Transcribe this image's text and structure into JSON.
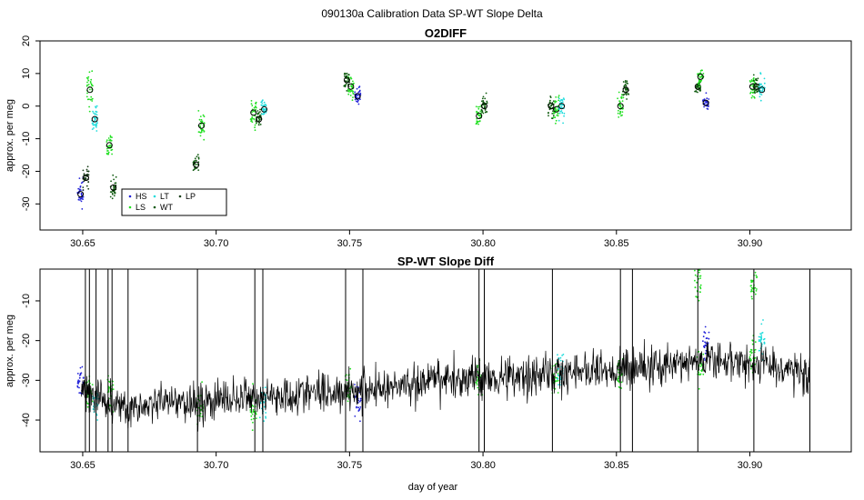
{
  "page_title": "090130a   Calibration Data SP-WT Slope Delta",
  "colors": {
    "HS": "#2121d8",
    "LS": "#22e022",
    "LT": "#1fdcdc",
    "WT": "#0f5a0f",
    "LP": "#1a3f1a",
    "trace": "#000000"
  },
  "chart_data": [
    {
      "type": "scatter",
      "title": "O2DIFF",
      "xlabel": "",
      "ylabel": "approx. per meg",
      "xlim": [
        30.634,
        30.938
      ],
      "ylim": [
        -38,
        20
      ],
      "x_ticks": [
        30.65,
        30.7,
        30.75,
        30.8,
        30.85,
        30.9
      ],
      "x_tick_labels": [
        "30.65",
        "30.70",
        "30.75",
        "30.80",
        "30.85",
        "30.90"
      ],
      "y_ticks": [
        -30,
        -20,
        -10,
        0,
        10,
        20
      ],
      "y_tick_labels": [
        "-30",
        "-20",
        "-10",
        "0",
        "10",
        "20"
      ],
      "legend": {
        "position": "bottom-left",
        "entries": [
          {
            "key": "HS",
            "label": "HS"
          },
          {
            "key": "LS",
            "label": "LS"
          },
          {
            "key": "LT",
            "label": "LT"
          },
          {
            "key": "WT",
            "label": "WT"
          },
          {
            "key": "LP",
            "label": "LP"
          }
        ]
      },
      "groups": [
        {
          "tank": "HS",
          "x": 30.6492,
          "mean": -27,
          "sd": 3.5
        },
        {
          "tank": "LP",
          "x": 30.6512,
          "mean": -22,
          "sd": 2.5
        },
        {
          "tank": "LS",
          "x": 30.6527,
          "mean": 5,
          "sd": 4.5
        },
        {
          "tank": "LT",
          "x": 30.6545,
          "mean": -4,
          "sd": 3.5
        },
        {
          "tank": "LS",
          "x": 30.66,
          "mean": -12,
          "sd": 2.5
        },
        {
          "tank": "WT",
          "x": 30.6615,
          "mean": -25,
          "sd": 2.5
        },
        {
          "tank": "WT",
          "x": 30.6925,
          "mean": -18,
          "sd": 2.5
        },
        {
          "tank": "LS",
          "x": 30.6945,
          "mean": -6,
          "sd": 3.5
        },
        {
          "tank": "LS",
          "x": 30.714,
          "mean": -2,
          "sd": 4.0
        },
        {
          "tank": "WT",
          "x": 30.716,
          "mean": -4,
          "sd": 2.5
        },
        {
          "tank": "LT",
          "x": 30.718,
          "mean": -1,
          "sd": 2.5
        },
        {
          "tank": "WT",
          "x": 30.749,
          "mean": 8,
          "sd": 2.5
        },
        {
          "tank": "LS",
          "x": 30.7505,
          "mean": 6,
          "sd": 3.0
        },
        {
          "tank": "HS",
          "x": 30.753,
          "mean": 3,
          "sd": 2.5
        },
        {
          "tank": "LS",
          "x": 30.7985,
          "mean": -3,
          "sd": 4.0
        },
        {
          "tank": "WT",
          "x": 30.8005,
          "mean": 0,
          "sd": 3.0
        },
        {
          "tank": "WT",
          "x": 30.8255,
          "mean": 0,
          "sd": 3.5
        },
        {
          "tank": "LS",
          "x": 30.8275,
          "mean": -1,
          "sd": 3.0
        },
        {
          "tank": "LT",
          "x": 30.8295,
          "mean": 0,
          "sd": 3.5
        },
        {
          "tank": "LS",
          "x": 30.8515,
          "mean": 0,
          "sd": 3.5
        },
        {
          "tank": "WT",
          "x": 30.8535,
          "mean": 5,
          "sd": 2.5
        },
        {
          "tank": "WT",
          "x": 30.8805,
          "mean": 6,
          "sd": 2.0
        },
        {
          "tank": "LS",
          "x": 30.8815,
          "mean": 9,
          "sd": 2.5
        },
        {
          "tank": "HS",
          "x": 30.8835,
          "mean": 1,
          "sd": 2.0
        },
        {
          "tank": "LS",
          "x": 30.901,
          "mean": 6,
          "sd": 3.0
        },
        {
          "tank": "WT",
          "x": 30.9025,
          "mean": 6,
          "sd": 2.5
        },
        {
          "tank": "LT",
          "x": 30.9045,
          "mean": 5,
          "sd": 3.0
        }
      ]
    },
    {
      "type": "line",
      "title": "SP-WT Slope Diff",
      "xlabel": "day of year",
      "ylabel": "approx. per meg",
      "xlim": [
        30.634,
        30.938
      ],
      "ylim": [
        -48,
        -2
      ],
      "x_ticks": [
        30.65,
        30.7,
        30.75,
        30.8,
        30.85,
        30.9
      ],
      "x_tick_labels": [
        "30.65",
        "30.70",
        "30.75",
        "30.80",
        "30.85",
        "30.90"
      ],
      "y_ticks": [
        -40,
        -30,
        -20,
        -10
      ],
      "y_tick_labels": [
        "-40",
        "-30",
        "-20",
        "-10"
      ],
      "x_start": 30.6495,
      "x_end": 30.9225,
      "trend": [
        {
          "x": 30.6495,
          "y": -32
        },
        {
          "x": 30.665,
          "y": -37
        },
        {
          "x": 30.7,
          "y": -35
        },
        {
          "x": 30.74,
          "y": -33
        },
        {
          "x": 30.76,
          "y": -32
        },
        {
          "x": 30.8,
          "y": -29
        },
        {
          "x": 30.84,
          "y": -28
        },
        {
          "x": 30.87,
          "y": -26
        },
        {
          "x": 30.895,
          "y": -25
        },
        {
          "x": 30.9225,
          "y": -28
        }
      ],
      "spikes": [
        30.651,
        30.6525,
        30.655,
        30.6595,
        30.661,
        30.667,
        30.693,
        30.7145,
        30.7175,
        30.7485,
        30.755,
        30.7985,
        30.8005,
        30.826,
        30.8515,
        30.856,
        30.8805,
        30.9015,
        30.9225
      ],
      "tank_overlays": [
        {
          "tank": "HS",
          "x": 30.6492,
          "level": -31
        },
        {
          "tank": "LS",
          "x": 30.6525,
          "level": -32
        },
        {
          "tank": "LT",
          "x": 30.655,
          "level": -35
        },
        {
          "tank": "LS",
          "x": 30.6605,
          "level": -33
        },
        {
          "tank": "LS",
          "x": 30.694,
          "level": -36
        },
        {
          "tank": "LS",
          "x": 30.714,
          "level": -37
        },
        {
          "tank": "LT",
          "x": 30.7175,
          "level": -36
        },
        {
          "tank": "LS",
          "x": 30.7495,
          "level": -32
        },
        {
          "tank": "HS",
          "x": 30.753,
          "level": -35
        },
        {
          "tank": "LS",
          "x": 30.7985,
          "level": -30
        },
        {
          "tank": "LS",
          "x": 30.827,
          "level": -29
        },
        {
          "tank": "LT",
          "x": 30.829,
          "level": -27
        },
        {
          "tank": "LS",
          "x": 30.8515,
          "level": -28
        },
        {
          "tank": "HS",
          "x": 30.8835,
          "level": -21
        },
        {
          "tank": "LS",
          "x": 30.8815,
          "level": -27
        },
        {
          "tank": "LS",
          "x": 30.901,
          "level": -24
        },
        {
          "tank": "LT",
          "x": 30.9045,
          "level": -20
        },
        {
          "tank": "LS",
          "x": 30.8805,
          "level": -6
        },
        {
          "tank": "LS",
          "x": 30.9015,
          "level": -6
        }
      ]
    }
  ]
}
